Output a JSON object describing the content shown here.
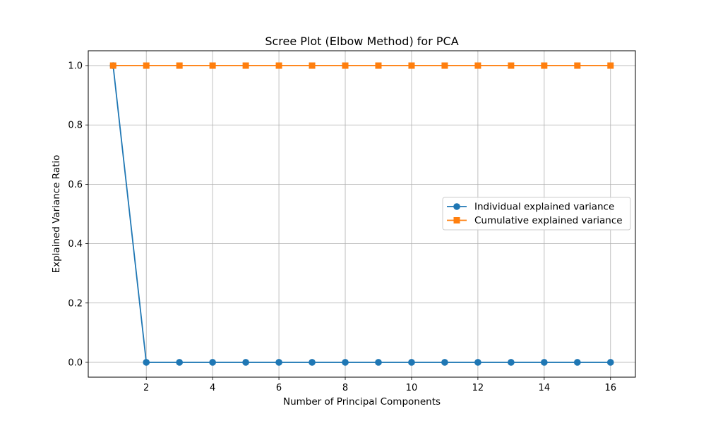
{
  "chart_data": {
    "type": "line",
    "title": "Scree Plot (Elbow Method) for PCA",
    "xlabel": "Number of Principal Components",
    "ylabel": "Explained Variance Ratio",
    "x": [
      1,
      2,
      3,
      4,
      5,
      6,
      7,
      8,
      9,
      10,
      11,
      12,
      13,
      14,
      15,
      16
    ],
    "xlim": [
      0.25,
      16.75
    ],
    "ylim": [
      -0.05,
      1.05
    ],
    "xticks": [
      2,
      4,
      6,
      8,
      10,
      12,
      14,
      16
    ],
    "xtick_labels": [
      "2",
      "4",
      "6",
      "8",
      "10",
      "12",
      "14",
      "16"
    ],
    "yticks": [
      0.0,
      0.2,
      0.4,
      0.6,
      0.8,
      1.0
    ],
    "ytick_labels": [
      "0.0",
      "0.2",
      "0.4",
      "0.6",
      "0.8",
      "1.0"
    ],
    "grid": true,
    "legend_position": "center-right",
    "series": [
      {
        "name": "Individual explained variance",
        "color": "#1f77b4",
        "marker": "circle",
        "values": [
          1.0,
          0.0,
          0.0,
          0.0,
          0.0,
          0.0,
          0.0,
          0.0,
          0.0,
          0.0,
          0.0,
          0.0,
          0.0,
          0.0,
          0.0,
          0.0
        ]
      },
      {
        "name": "Cumulative explained variance",
        "color": "#ff7f0e",
        "marker": "square",
        "values": [
          1.0,
          1.0,
          1.0,
          1.0,
          1.0,
          1.0,
          1.0,
          1.0,
          1.0,
          1.0,
          1.0,
          1.0,
          1.0,
          1.0,
          1.0,
          1.0
        ]
      }
    ]
  }
}
